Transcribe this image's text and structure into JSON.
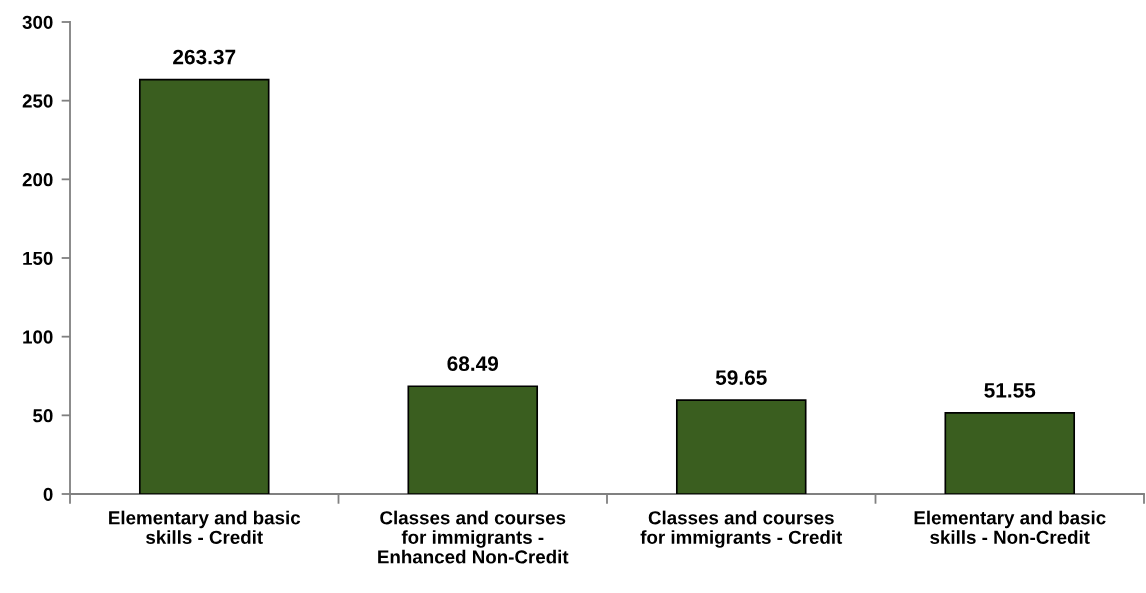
{
  "chart_data": {
    "type": "bar",
    "categories": [
      "Elementary and basic\nskills - Credit",
      "Classes and courses\nfor immigrants -\nEnhanced Non-Credit",
      "Classes and courses\nfor immigrants - Credit",
      "Elementary and basic\nskills - Non-Credit"
    ],
    "values": [
      263.37,
      68.49,
      59.65,
      51.55
    ],
    "color": "#3a5e1f",
    "ylim": [
      0,
      300
    ],
    "yticks": [
      0,
      50,
      100,
      150,
      200,
      250,
      300
    ],
    "grid": false,
    "legend": false,
    "data_labels": true
  }
}
